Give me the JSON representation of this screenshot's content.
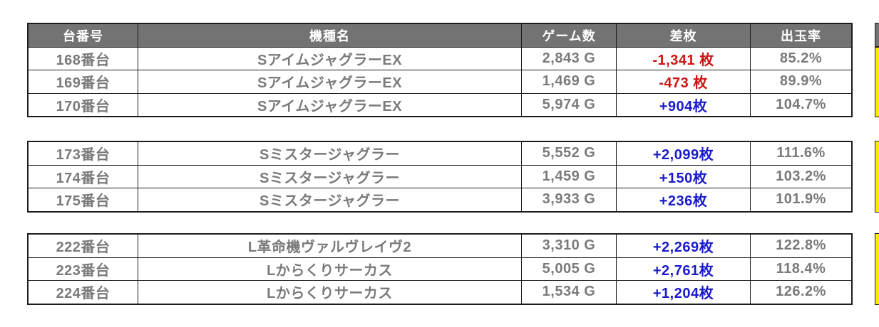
{
  "colors": {
    "header_bg": "#737373",
    "text": "#7a7a7a",
    "negative": "#cc1414",
    "positive": "#1a1acb",
    "highlight": "#ffeb00",
    "border": "#1c1c1c"
  },
  "chart_data": {
    "type": "table",
    "columns": [
      "台番号",
      "機種名",
      "ゲーム数",
      "差枚",
      "出玉率"
    ],
    "sections": [
      {
        "rows": [
          [
            "168番台",
            "SアイムジャグラーEX",
            "2,843 G",
            "-1,341 枚",
            "85.2%"
          ],
          [
            "169番台",
            "SアイムジャグラーEX",
            "1,469 G",
            "-473 枚",
            "89.9%"
          ],
          [
            "170番台",
            "SアイムジャグラーEX",
            "5,974 G",
            "+904枚",
            "104.7%"
          ]
        ]
      },
      {
        "rows": [
          [
            "173番台",
            "Sミスタージャグラー",
            "5,552 G",
            "+2,099枚",
            "111.6%"
          ],
          [
            "174番台",
            "Sミスタージャグラー",
            "1,459 G",
            "+150枚",
            "103.2%"
          ],
          [
            "175番台",
            "Sミスタージャグラー",
            "3,933 G",
            "+236枚",
            "101.9%"
          ]
        ]
      },
      {
        "rows": [
          [
            "222番台",
            "L革命機ヴァルヴレイヴ2",
            "3,310 G",
            "+2,269枚",
            "122.8%"
          ],
          [
            "223番台",
            "Lからくりサーカス",
            "5,005 G",
            "+2,761枚",
            "118.4%"
          ],
          [
            "224番台",
            "Lからくりサーカス",
            "1,534 G",
            "+1,204枚",
            "126.2%"
          ]
        ]
      }
    ]
  }
}
